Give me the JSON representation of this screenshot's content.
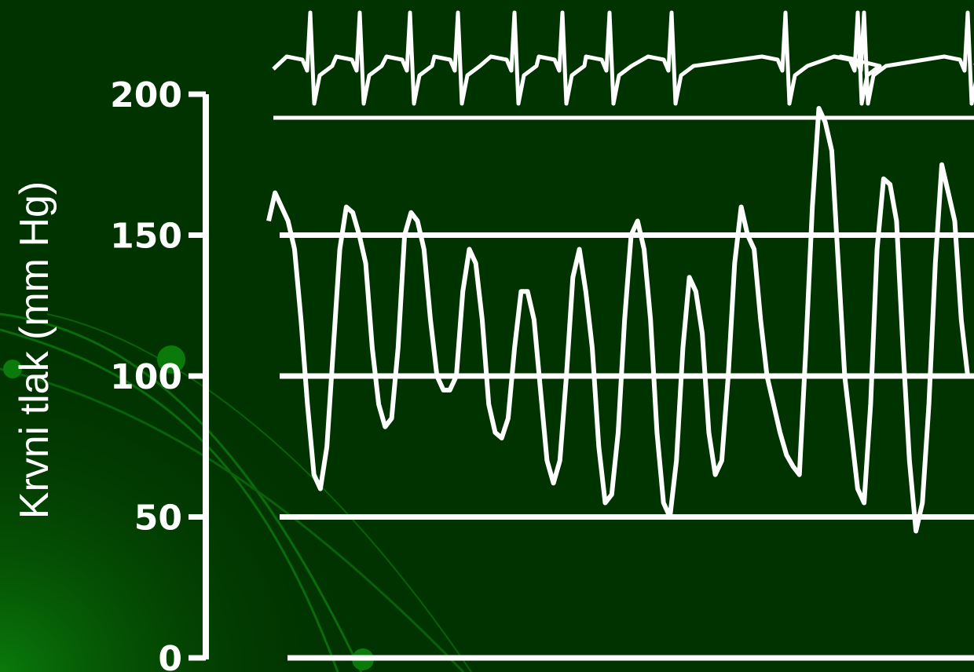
{
  "chart_data": {
    "type": "line",
    "title": "",
    "xlabel": "",
    "ylabel": "Krvni tlak (mm Hg)",
    "ylim": [
      0,
      200
    ],
    "yticks": [
      0,
      50,
      100,
      150,
      200
    ],
    "reference_lines": [
      0,
      50,
      100,
      150
    ],
    "grid": false,
    "series": [
      {
        "values": [
          155,
          165,
          160,
          155,
          145,
          120,
          90,
          65,
          60,
          75,
          110,
          145,
          160,
          158,
          150,
          140,
          110,
          90,
          82,
          85,
          110,
          150,
          158,
          155,
          145,
          120,
          100,
          95,
          95,
          100,
          130,
          145,
          140,
          120,
          90,
          80,
          78,
          85,
          110,
          130,
          130,
          120,
          95,
          70,
          62,
          70,
          100,
          135,
          145,
          130,
          110,
          75,
          55,
          58,
          80,
          120,
          150,
          155,
          145,
          120,
          80,
          55,
          50,
          70,
          110,
          135,
          130,
          115,
          80,
          65,
          70,
          100,
          140,
          160,
          150,
          145,
          120,
          100,
          90,
          80,
          72,
          68,
          65,
          110,
          160,
          195,
          190,
          180,
          140,
          100,
          80,
          60,
          55,
          90,
          145,
          170,
          168,
          155,
          110,
          70,
          45,
          55,
          90,
          140,
          175,
          165,
          155,
          120,
          100
        ]
      }
    ]
  },
  "ecg_color": "#ffffff",
  "background_color": "#013300"
}
